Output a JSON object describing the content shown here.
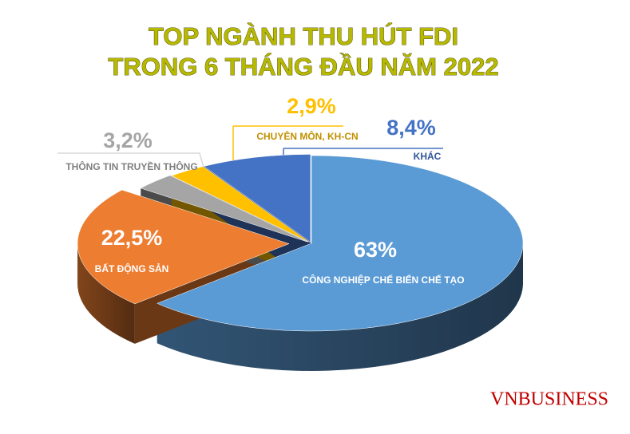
{
  "chart_data": {
    "type": "pie3d",
    "title": [
      "TOP NGÀNH THU HÚT FDI",
      "TRONG 6 THÁNG ĐẦU NĂM 2022"
    ],
    "categories": [
      "CÔNG NGHIỆP CHẾ BIẾN CHẾ TẠO",
      "BẤT ĐỘNG SẢN",
      "THÔNG TIN TRUYỀN THÔNG",
      "CHUYÊN MÔN, KH-CN",
      "KHÁC"
    ],
    "values": [
      63,
      22.5,
      3.2,
      2.9,
      8.4
    ],
    "value_labels": [
      "63%",
      "22,5%",
      "3,2%",
      "2,9%",
      "8,4%"
    ],
    "colors": [
      "#5b9bd5",
      "#ed7d31",
      "#a5a5a5",
      "#ffc000",
      "#4472c4"
    ],
    "source": "VNBUSINESS"
  }
}
